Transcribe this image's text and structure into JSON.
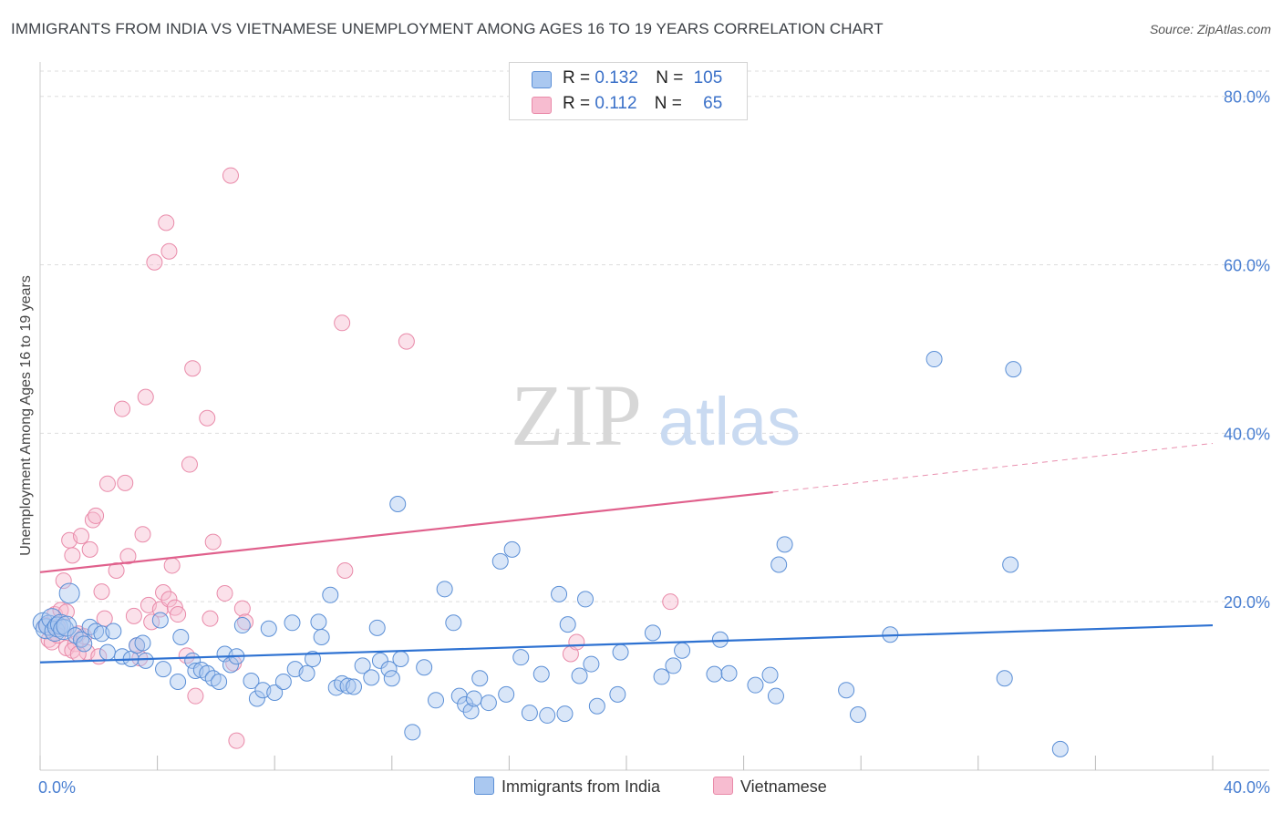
{
  "header": {
    "title": "IMMIGRANTS FROM INDIA VS VIETNAMESE UNEMPLOYMENT AMONG AGES 16 TO 19 YEARS CORRELATION CHART",
    "source": "Source: ZipAtlas.com"
  },
  "watermark": {
    "zip": "ZIP",
    "atlas": "atlas"
  },
  "legend": {
    "india": {
      "r_label": "R = ",
      "r_value": "0.132",
      "n_label": "N = ",
      "n_value": "105"
    },
    "vietnamese": {
      "r_label": "R = ",
      "r_value": "0.112",
      "n_label": "N = ",
      "n_value": "65"
    }
  },
  "bottom_legend": {
    "india": "Immigrants from India",
    "vietnamese": "Vietnamese"
  },
  "colors": {
    "india_fill": "#aac8f0",
    "india_stroke": "#5b8fd6",
    "india_line": "#2e72d2",
    "viet_fill": "#f7bcd0",
    "viet_stroke": "#e98aa9",
    "viet_line": "#e0608c",
    "tick_text": "#4a7fd1",
    "grid": "#dddddd"
  },
  "chart_data": {
    "type": "scatter",
    "title": "IMMIGRANTS FROM INDIA VS VIETNAMESE UNEMPLOYMENT AMONG AGES 16 TO 19 YEARS CORRELATION CHART",
    "xlabel": "",
    "ylabel": "Unemployment Among Ages 16 to 19 years",
    "xlim": [
      0,
      40
    ],
    "ylim": [
      0,
      83
    ],
    "x_tick_labels": [
      "0.0%",
      "40.0%"
    ],
    "y_ticks": [
      20,
      40,
      60,
      80
    ],
    "y_tick_labels": [
      "20.0%",
      "40.0%",
      "60.0%",
      "80.0%"
    ],
    "series": [
      {
        "name": "Immigrants from India",
        "r": 0.132,
        "n": 105,
        "trend": {
          "x0": 0,
          "y0": 12.8,
          "x1": 40,
          "y1": 17.2
        },
        "points": [
          [
            0.1,
            17.5
          ],
          [
            0.2,
            16.8
          ],
          [
            0.3,
            17.2
          ],
          [
            0.4,
            18.0
          ],
          [
            0.5,
            16.5
          ],
          [
            0.6,
            17.0
          ],
          [
            0.7,
            17.3
          ],
          [
            0.8,
            16.7
          ],
          [
            0.9,
            17.1
          ],
          [
            1.0,
            21.0
          ],
          [
            1.2,
            16.0
          ],
          [
            1.4,
            15.5
          ],
          [
            1.5,
            15.0
          ],
          [
            1.7,
            17.0
          ],
          [
            1.9,
            16.5
          ],
          [
            2.1,
            16.2
          ],
          [
            2.3,
            14.0
          ],
          [
            2.5,
            16.5
          ],
          [
            2.8,
            13.5
          ],
          [
            3.1,
            13.2
          ],
          [
            3.3,
            14.8
          ],
          [
            3.5,
            15.1
          ],
          [
            3.6,
            13.0
          ],
          [
            4.1,
            17.8
          ],
          [
            4.2,
            12.0
          ],
          [
            4.7,
            10.5
          ],
          [
            4.8,
            15.8
          ],
          [
            5.2,
            13.0
          ],
          [
            5.3,
            11.8
          ],
          [
            5.5,
            11.9
          ],
          [
            5.7,
            11.5
          ],
          [
            5.9,
            10.9
          ],
          [
            6.1,
            10.5
          ],
          [
            6.3,
            13.8
          ],
          [
            6.5,
            12.5
          ],
          [
            6.7,
            13.5
          ],
          [
            6.9,
            17.2
          ],
          [
            7.2,
            10.6
          ],
          [
            7.4,
            8.5
          ],
          [
            7.6,
            9.5
          ],
          [
            7.8,
            16.8
          ],
          [
            8.0,
            9.2
          ],
          [
            8.3,
            10.5
          ],
          [
            8.6,
            17.5
          ],
          [
            8.7,
            12.0
          ],
          [
            9.1,
            11.5
          ],
          [
            9.3,
            13.2
          ],
          [
            9.5,
            17.6
          ],
          [
            9.6,
            15.8
          ],
          [
            9.9,
            20.8
          ],
          [
            10.1,
            9.8
          ],
          [
            10.3,
            10.3
          ],
          [
            10.5,
            10.0
          ],
          [
            10.7,
            9.9
          ],
          [
            11.0,
            12.4
          ],
          [
            11.3,
            11.0
          ],
          [
            11.5,
            16.9
          ],
          [
            11.6,
            13.0
          ],
          [
            11.9,
            12.0
          ],
          [
            12.0,
            10.9
          ],
          [
            12.3,
            13.2
          ],
          [
            12.7,
            4.5
          ],
          [
            13.1,
            12.2
          ],
          [
            13.5,
            8.3
          ],
          [
            13.8,
            21.5
          ],
          [
            14.1,
            17.5
          ],
          [
            14.3,
            8.8
          ],
          [
            14.5,
            7.8
          ],
          [
            14.7,
            7.0
          ],
          [
            14.8,
            8.5
          ],
          [
            15.0,
            10.9
          ],
          [
            15.3,
            8.0
          ],
          [
            15.7,
            24.8
          ],
          [
            15.9,
            9.0
          ],
          [
            16.1,
            26.2
          ],
          [
            16.4,
            13.4
          ],
          [
            16.7,
            6.8
          ],
          [
            17.1,
            11.4
          ],
          [
            17.3,
            6.5
          ],
          [
            17.7,
            20.9
          ],
          [
            17.9,
            6.7
          ],
          [
            18.0,
            17.3
          ],
          [
            18.4,
            11.2
          ],
          [
            18.6,
            20.3
          ],
          [
            18.8,
            12.6
          ],
          [
            19.0,
            7.6
          ],
          [
            19.7,
            9.0
          ],
          [
            19.8,
            14.0
          ],
          [
            20.9,
            16.3
          ],
          [
            21.2,
            11.1
          ],
          [
            21.6,
            12.4
          ],
          [
            21.9,
            14.2
          ],
          [
            23.0,
            11.4
          ],
          [
            23.2,
            15.5
          ],
          [
            23.5,
            11.5
          ],
          [
            24.4,
            10.1
          ],
          [
            24.9,
            11.3
          ],
          [
            25.1,
            8.8
          ],
          [
            25.2,
            24.4
          ],
          [
            25.4,
            26.8
          ],
          [
            27.5,
            9.5
          ],
          [
            27.9,
            6.6
          ],
          [
            29.0,
            16.1
          ],
          [
            30.5,
            48.8
          ],
          [
            32.9,
            10.9
          ],
          [
            33.2,
            47.6
          ],
          [
            33.1,
            24.4
          ],
          [
            34.8,
            2.5
          ],
          [
            12.2,
            31.6
          ]
        ]
      },
      {
        "name": "Vietnamese",
        "r": 0.112,
        "n": 65,
        "trend": {
          "x0": 0,
          "y0": 23.5,
          "x1": 25,
          "y1": 33.0
        },
        "trend_dashed": {
          "x0": 25,
          "y0": 33.0,
          "x1": 40,
          "y1": 38.8
        },
        "points": [
          [
            0.2,
            17.2
          ],
          [
            0.3,
            15.5
          ],
          [
            0.4,
            15.2
          ],
          [
            0.5,
            18.5
          ],
          [
            0.6,
            17.0
          ],
          [
            0.7,
            19.0
          ],
          [
            0.8,
            22.5
          ],
          [
            0.9,
            14.5
          ],
          [
            1.0,
            27.3
          ],
          [
            1.1,
            25.5
          ],
          [
            1.2,
            15.0
          ],
          [
            1.3,
            16.2
          ],
          [
            1.4,
            27.8
          ],
          [
            1.5,
            15.9
          ],
          [
            1.6,
            14.0
          ],
          [
            1.7,
            26.2
          ],
          [
            1.8,
            29.7
          ],
          [
            1.9,
            30.2
          ],
          [
            2.0,
            13.5
          ],
          [
            2.1,
            21.2
          ],
          [
            2.2,
            18.0
          ],
          [
            2.3,
            34.0
          ],
          [
            2.6,
            23.7
          ],
          [
            2.8,
            42.9
          ],
          [
            2.9,
            34.1
          ],
          [
            3.0,
            25.4
          ],
          [
            3.2,
            18.3
          ],
          [
            3.4,
            13.3
          ],
          [
            3.5,
            28.0
          ],
          [
            3.6,
            44.3
          ],
          [
            3.7,
            19.6
          ],
          [
            3.8,
            17.6
          ],
          [
            3.9,
            60.3
          ],
          [
            4.1,
            19.1
          ],
          [
            4.2,
            21.1
          ],
          [
            4.3,
            65.0
          ],
          [
            4.4,
            20.3
          ],
          [
            4.4,
            61.6
          ],
          [
            4.5,
            24.3
          ],
          [
            4.6,
            19.3
          ],
          [
            4.7,
            18.5
          ],
          [
            5.0,
            13.6
          ],
          [
            5.1,
            36.3
          ],
          [
            5.2,
            47.7
          ],
          [
            5.3,
            8.8
          ],
          [
            5.7,
            41.8
          ],
          [
            5.8,
            18.0
          ],
          [
            5.9,
            27.1
          ],
          [
            6.3,
            21.0
          ],
          [
            6.5,
            70.6
          ],
          [
            6.6,
            12.7
          ],
          [
            6.7,
            3.5
          ],
          [
            6.9,
            19.2
          ],
          [
            7.0,
            17.6
          ],
          [
            10.3,
            53.1
          ],
          [
            10.4,
            23.7
          ],
          [
            12.5,
            50.9
          ],
          [
            18.1,
            13.8
          ],
          [
            18.3,
            15.2
          ],
          [
            21.5,
            20.0
          ],
          [
            0.6,
            16.0
          ],
          [
            1.1,
            14.2
          ],
          [
            0.9,
            18.8
          ],
          [
            1.3,
            13.8
          ],
          [
            3.3,
            14.8
          ]
        ]
      }
    ]
  }
}
